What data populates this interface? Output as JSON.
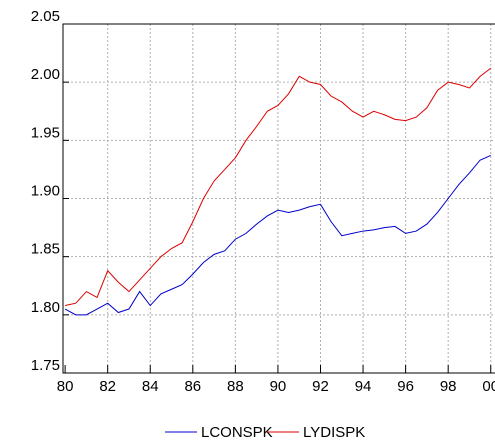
{
  "chart_data": {
    "type": "line",
    "x": [
      80,
      80.5,
      81,
      81.5,
      82,
      82.5,
      83,
      83.5,
      84,
      84.5,
      85,
      85.5,
      86,
      86.5,
      87,
      87.5,
      88,
      88.5,
      89,
      89.5,
      90,
      90.5,
      91,
      91.5,
      92,
      92.5,
      93,
      93.5,
      94,
      94.5,
      95,
      95.5,
      96,
      96.5,
      97,
      97.5,
      98,
      98.5,
      99,
      99.5,
      100
    ],
    "series": [
      {
        "name": "LCONSPK",
        "color": "#0000cc",
        "values": [
          1.805,
          1.8,
          1.8,
          1.805,
          1.81,
          1.802,
          1.805,
          1.82,
          1.808,
          1.818,
          1.822,
          1.826,
          1.835,
          1.845,
          1.852,
          1.855,
          1.865,
          1.87,
          1.878,
          1.885,
          1.89,
          1.888,
          1.89,
          1.893,
          1.895,
          1.88,
          1.868,
          1.87,
          1.872,
          1.873,
          1.875,
          1.876,
          1.87,
          1.872,
          1.878,
          1.888,
          1.9,
          1.912,
          1.922,
          1.933,
          1.937
        ]
      },
      {
        "name": "LYDISPK",
        "color": "#dd0000",
        "values": [
          1.808,
          1.81,
          1.82,
          1.815,
          1.838,
          1.828,
          1.82,
          1.83,
          1.84,
          1.85,
          1.857,
          1.862,
          1.88,
          1.9,
          1.915,
          1.925,
          1.935,
          1.95,
          1.962,
          1.975,
          1.98,
          1.99,
          2.005,
          2.0,
          1.998,
          1.988,
          1.983,
          1.975,
          1.97,
          1.975,
          1.972,
          1.968,
          1.967,
          1.97,
          1.978,
          1.993,
          2.0,
          1.998,
          1.995,
          2.005,
          2.012
        ]
      }
    ],
    "xlim": [
      79.9,
      100.2
    ],
    "xticks": [
      80,
      82,
      84,
      86,
      88,
      90,
      92,
      94,
      96,
      98,
      {
        "value": 100,
        "label": "00"
      }
    ],
    "ylim": [
      1.75,
      2.05
    ],
    "yticks": [
      1.75,
      {
        "value": 1.8,
        "label": "1.80"
      },
      1.85,
      {
        "value": 1.9,
        "label": "1.90"
      },
      1.95,
      {
        "value": 2,
        "label": "2.00"
      },
      2.05
    ],
    "grid": true,
    "legend": "bottom"
  }
}
